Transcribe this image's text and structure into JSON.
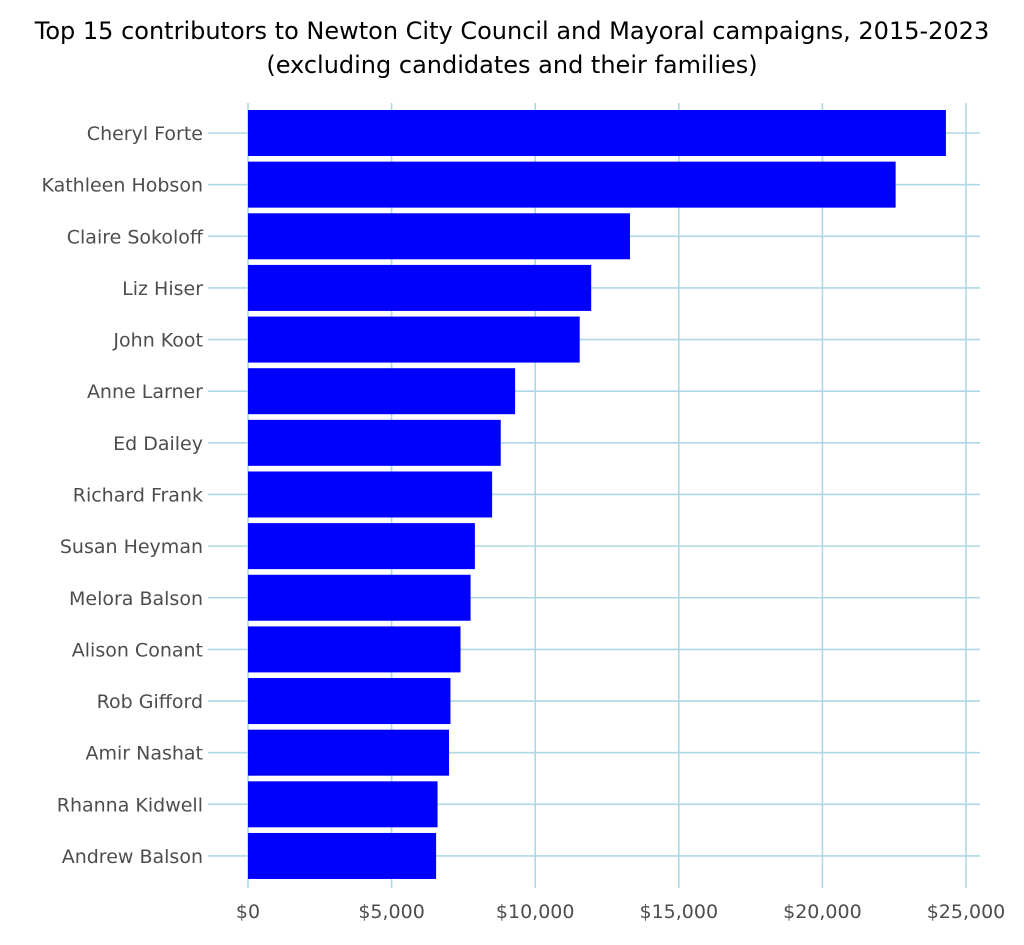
{
  "chart_data": {
    "type": "bar",
    "orientation": "horizontal",
    "title": "Top 15 contributors to Newton City Council and Mayoral campaigns, 2015-2023",
    "subtitle": "(excluding candidates and their families)",
    "xlabel": "",
    "ylabel": "",
    "categories": [
      "Cheryl Forte",
      "Kathleen Hobson",
      "Claire Sokoloff",
      "Liz Hiser",
      "John Koot",
      "Anne Larner",
      "Ed Dailey",
      "Richard Frank",
      "Susan Heyman",
      "Melora Balson",
      "Alison Conant",
      "Rob Gifford",
      "Amir Nashat",
      "Rhanna Kidwell",
      "Andrew Balson"
    ],
    "values": [
      24300,
      22550,
      13300,
      11950,
      11550,
      9300,
      8800,
      8500,
      7900,
      7750,
      7400,
      7050,
      7000,
      6600,
      6550
    ],
    "xlim": [
      0,
      25500
    ],
    "x_ticks": [
      0,
      5000,
      10000,
      15000,
      20000,
      25000
    ],
    "x_tick_labels": [
      "$0",
      "$5,000",
      "$10,000",
      "$15,000",
      "$20,000",
      "$25,000"
    ],
    "grid": true,
    "colors": {
      "bar": "#0000ff",
      "grid": "#add8e6",
      "text": "#4d4d4d"
    }
  }
}
